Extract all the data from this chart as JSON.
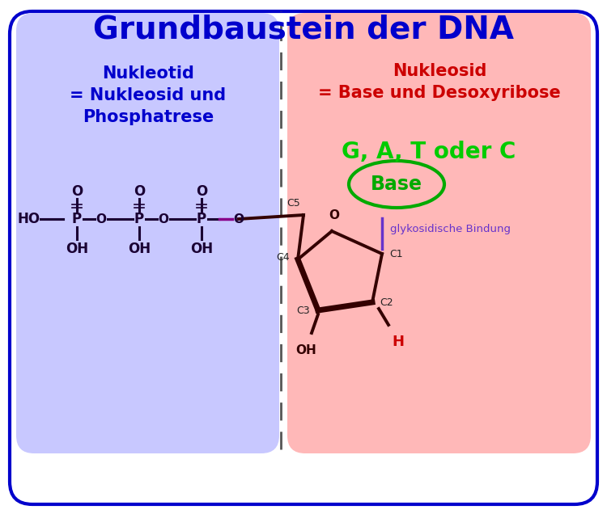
{
  "title": "Grundbaustein der DNA",
  "title_color": "#0000CC",
  "title_fontsize": 28,
  "bg_color": "#FFFFFF",
  "border_color": "#0000CC",
  "left_bg": "#C8C8FF",
  "right_bg": "#FFB8B8",
  "left_label1": "Nukleotid",
  "left_label2": "= Nukleosid und",
  "left_label3": "Phosphatrese",
  "left_color": "#0000CC",
  "right_label1": "Nukleosid",
  "right_label2": "= Base und Desoxyribose",
  "right_color": "#CC0000",
  "base_label": "G, A, T oder C",
  "base_label_color": "#00CC00",
  "base_text": "Base",
  "base_ellipse_color": "#00AA00",
  "glyco_text": "glykosidische Bindung",
  "glyco_color": "#6633CC",
  "sugar_color": "#330000",
  "phosphate_color": "#1A0033"
}
